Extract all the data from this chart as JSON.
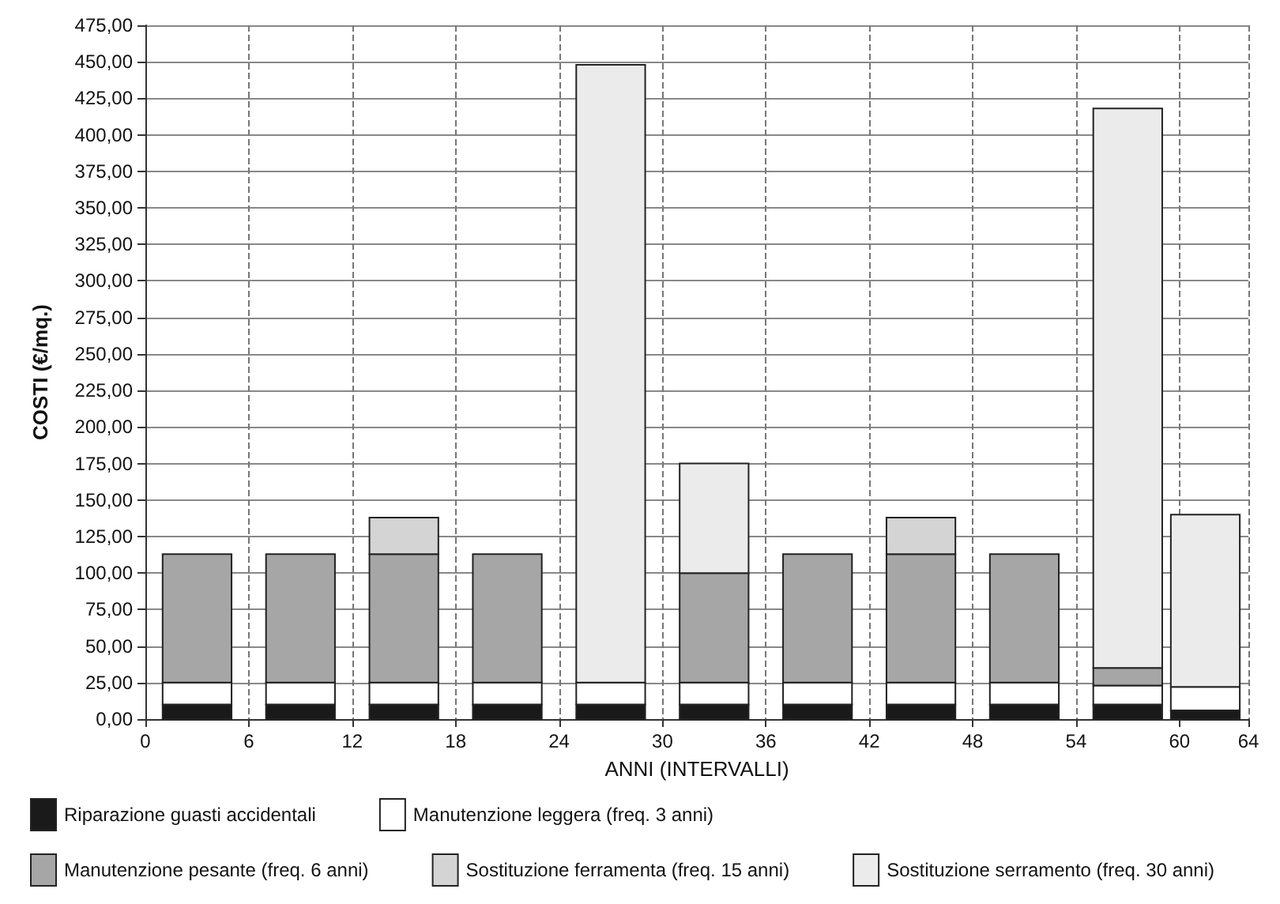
{
  "chart_data": {
    "type": "bar",
    "stacked": true,
    "xlabel": "ANNI (INTERVALLI)",
    "ylabel": "COSTI (€/mq.)",
    "x": [
      3,
      9,
      15,
      21,
      27,
      33,
      39,
      45,
      51,
      57,
      61.5
    ],
    "series": [
      {
        "name": "Riparazione guasti accidentali",
        "color": "#1a1a1a",
        "values": [
          10,
          10,
          10,
          10,
          10,
          10,
          10,
          10,
          10,
          10,
          6
        ]
      },
      {
        "name": "Manutenzione leggera (freq. 3 anni)",
        "color": "#ffffff",
        "values": [
          15,
          15,
          15,
          15,
          15,
          15,
          15,
          15,
          15,
          13,
          16
        ]
      },
      {
        "name": "Manutenzione pesante (freq. 6 anni)",
        "color": "#a6a6a6",
        "values": [
          88,
          88,
          88,
          88,
          null,
          75,
          88,
          88,
          88,
          12,
          null
        ]
      },
      {
        "name": "Sostituzione ferramenta (freq. 15 anni)",
        "color": "#d4d4d4",
        "values": [
          null,
          null,
          25,
          null,
          null,
          null,
          null,
          25,
          null,
          null,
          null
        ]
      },
      {
        "name": "Sostituzione serramento (freq. 30 anni)",
        "color": "#ebebeb",
        "values": [
          null,
          null,
          null,
          null,
          423,
          75,
          null,
          null,
          null,
          383,
          118
        ]
      }
    ],
    "xlim": [
      0,
      64
    ],
    "xticks": [
      0,
      6,
      12,
      18,
      24,
      30,
      36,
      42,
      48,
      54,
      60,
      64
    ],
    "ylim": [
      0,
      475
    ],
    "yticks": [
      {
        "value": 0,
        "label": "0,00"
      },
      {
        "value": 25,
        "label": "25,00"
      },
      {
        "value": 50,
        "label": "50,00"
      },
      {
        "value": 75,
        "label": "75,00"
      },
      {
        "value": 100,
        "label": "100,00"
      },
      {
        "value": 125,
        "label": "125,00"
      },
      {
        "value": 150,
        "label": "150,00"
      },
      {
        "value": 175,
        "label": "175,00"
      },
      {
        "value": 200,
        "label": "200,00"
      },
      {
        "value": 225,
        "label": "225,00"
      },
      {
        "value": 250,
        "label": "250,00"
      },
      {
        "value": 275,
        "label": "275,00"
      },
      {
        "value": 300,
        "label": "300,00"
      },
      {
        "value": 325,
        "label": "325,00"
      },
      {
        "value": 350,
        "label": "350,00"
      },
      {
        "value": 375,
        "label": "375,00"
      },
      {
        "value": 400,
        "label": "400,00"
      },
      {
        "value": 425,
        "label": "425,00"
      },
      {
        "value": 450,
        "label": "450,00"
      },
      {
        "value": 475,
        "label": "475,00"
      }
    ],
    "grid": true,
    "legend": "bottom"
  }
}
